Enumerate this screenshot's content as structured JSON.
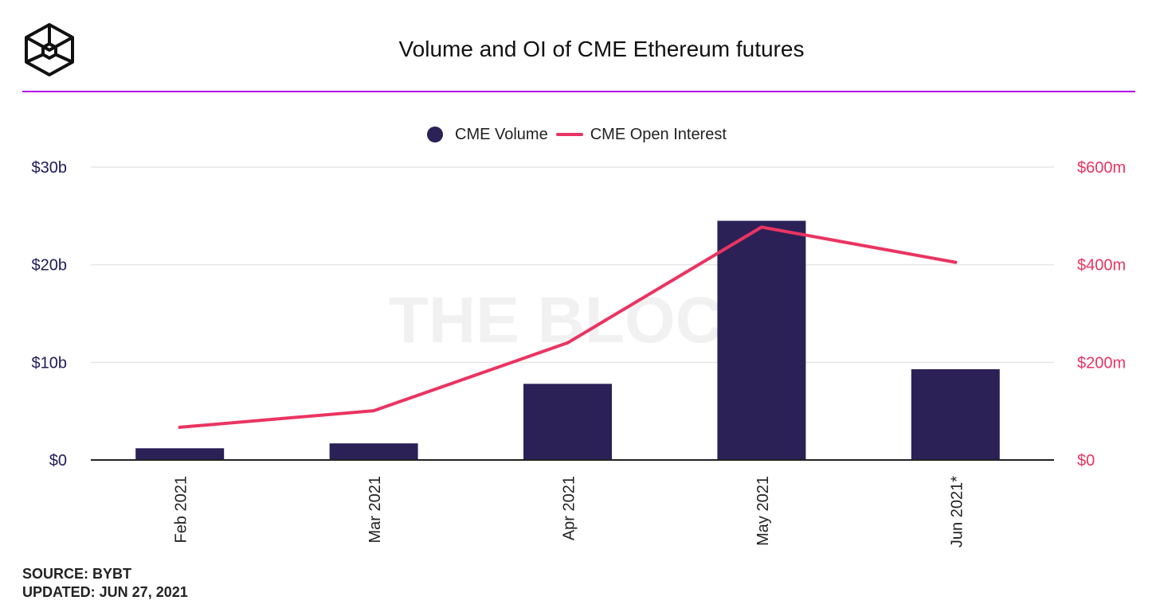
{
  "header": {
    "title": "Volume and OI of CME Ethereum futures"
  },
  "legend": {
    "volume_label": "CME Volume",
    "oi_label": "CME Open Interest"
  },
  "watermark": "THE BLOCK",
  "footer": {
    "source": "SOURCE: BYBT",
    "updated": "UPDATED: JUN 27, 2021"
  },
  "colors": {
    "volume": "#2b2157",
    "open_interest": "#ea3461",
    "rule": "#b100e8",
    "left_axis": "#1f1a5a",
    "right_axis": "#ea3461"
  },
  "chart_data": {
    "type": "bar",
    "categories": [
      "Feb 2021",
      "Mar 2021",
      "Apr 2021",
      "May 2021",
      "Jun 2021*"
    ],
    "series": [
      {
        "name": "CME Volume",
        "type": "bar",
        "axis": "left",
        "values": [
          1.2,
          1.7,
          7.8,
          24.5,
          9.3
        ]
      },
      {
        "name": "CME Open Interest",
        "type": "line",
        "axis": "right",
        "values": [
          67,
          101,
          240,
          477,
          405
        ]
      }
    ],
    "left_axis": {
      "ylim": [
        0,
        30
      ],
      "ticks": [
        0,
        10,
        20,
        30
      ],
      "tick_labels": [
        "$0",
        "$10b",
        "$20b",
        "$30b"
      ]
    },
    "right_axis": {
      "ylim": [
        0,
        600
      ],
      "ticks": [
        0,
        200,
        400,
        600
      ],
      "tick_labels": [
        "$0",
        "$200m",
        "$400m",
        "$600m"
      ]
    },
    "grid": true,
    "legend_position": "top-center"
  }
}
